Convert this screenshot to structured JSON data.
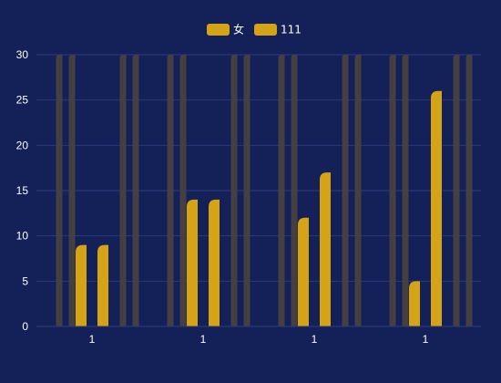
{
  "chart_data": {
    "type": "bar",
    "title": "",
    "xlabel": "",
    "ylabel": "",
    "categories": [
      "1",
      "1",
      "1",
      "1"
    ],
    "ylim": [
      0,
      30
    ],
    "yticks": [
      0,
      5,
      10,
      15,
      20,
      25,
      30
    ],
    "grid": true,
    "legend_position": "top-center",
    "series": [
      {
        "name": "女",
        "values": [
          9,
          14,
          12,
          5
        ],
        "color": "#d4a316"
      },
      {
        "name": "111",
        "values": [
          9,
          14,
          17,
          26
        ],
        "color": "#d4a316"
      }
    ],
    "background_bar": {
      "value": 30,
      "color": "#4a4340"
    },
    "colors": {
      "background": "#142158",
      "grid": "#2b3a7a",
      "axis_text": "#ffffff"
    }
  }
}
